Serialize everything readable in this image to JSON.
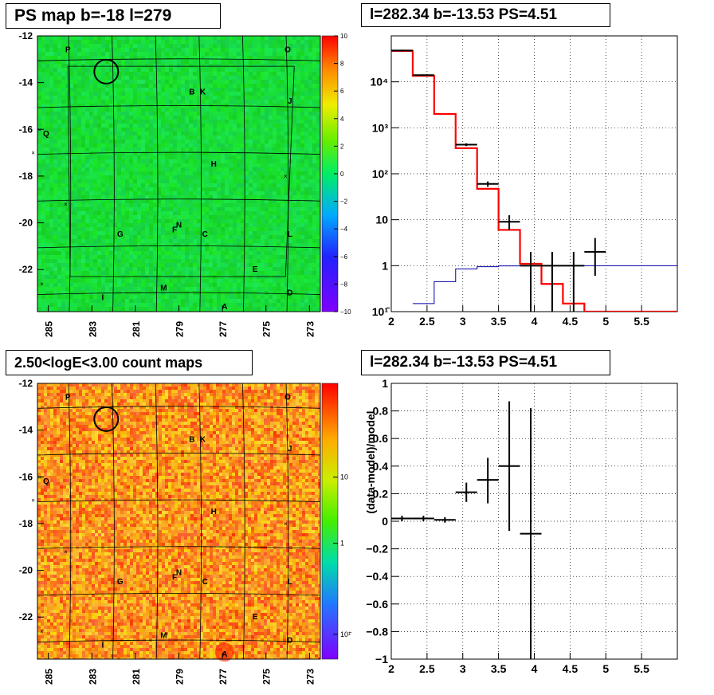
{
  "panels": {
    "ps_map_title": "PS map b=-18 l=279",
    "count_map_title": "2.50<logE<3.00 count maps",
    "spectrum_title": "l=282.34 b=-13.53 PS=4.51",
    "residual_title": "l=282.34 b=-13.53 PS=4.51"
  },
  "chart_data": [
    {
      "type": "heatmap",
      "title": "PS map b=-18 l=279",
      "x_ticks": [
        "285",
        "283",
        "281",
        "279",
        "277",
        "275",
        "273"
      ],
      "y_ticks": [
        "-12",
        "-14",
        "-16",
        "-18",
        "-20",
        "-22"
      ],
      "xlim": [
        285.5,
        272.5
      ],
      "ylim": [
        -23.8,
        -12
      ],
      "colorbar": {
        "range": [
          -10,
          10
        ],
        "ticks": [
          "10",
          "8",
          "6",
          "4",
          "2",
          "0",
          "−2",
          "−4",
          "−6",
          "−8",
          "−10"
        ]
      },
      "source_labels": [
        {
          "text": "P",
          "l": 284.1,
          "b": -12.7
        },
        {
          "text": "O",
          "l": 274.0,
          "b": -12.7
        },
        {
          "text": "B",
          "l": 278.4,
          "b": -14.5
        },
        {
          "text": "K",
          "l": 277.9,
          "b": -14.5
        },
        {
          "text": "J",
          "l": 273.9,
          "b": -14.9
        },
        {
          "text": "Q",
          "l": 285.1,
          "b": -16.3
        },
        {
          "text": "H",
          "l": 277.4,
          "b": -17.6
        },
        {
          "text": "G",
          "l": 281.7,
          "b": -20.6
        },
        {
          "text": "F",
          "l": 279.2,
          "b": -20.4
        },
        {
          "text": "N",
          "l": 279.0,
          "b": -20.2
        },
        {
          "text": "C",
          "l": 277.8,
          "b": -20.6
        },
        {
          "text": "L",
          "l": 273.9,
          "b": -20.6
        },
        {
          "text": "E",
          "l": 275.5,
          "b": -22.1
        },
        {
          "text": "M",
          "l": 279.7,
          "b": -22.9
        },
        {
          "text": "I",
          "l": 282.5,
          "b": -23.3
        },
        {
          "text": "D",
          "l": 273.9,
          "b": -23.1
        },
        {
          "text": "A",
          "l": 276.9,
          "b": -23.7
        }
      ],
      "marked_source": {
        "l": 282.34,
        "b": -13.53
      }
    },
    {
      "type": "line",
      "title": "l=282.34 b=-13.53 PS=4.51",
      "xlim": [
        2,
        6
      ],
      "ylim": [
        0.1,
        100000
      ],
      "y_scale": "log",
      "x_ticks": [
        "2",
        "2.5",
        "3",
        "3.5",
        "4",
        "4.5",
        "5",
        "5.5"
      ],
      "y_ticks": [
        "10¹̄",
        "1",
        "10",
        "10²",
        "10³",
        "10⁴"
      ],
      "grid": true,
      "series": [
        {
          "color": "#ff0000",
          "style": "step",
          "edges": [
            2.0,
            2.3,
            2.6,
            2.9,
            3.2,
            3.5,
            3.8,
            4.1,
            4.4,
            4.7,
            5.0,
            6.0
          ],
          "values": [
            47000,
            13500,
            2000,
            360,
            47,
            6,
            1.1,
            0.4,
            0.15,
            0.1,
            0.1
          ]
        },
        {
          "color": "#0000aa",
          "style": "step",
          "edges": [
            2.3,
            2.6,
            2.9,
            3.2,
            3.5,
            3.8,
            6.0
          ],
          "values": [
            0.15,
            0.45,
            0.85,
            0.95,
            0.99,
            1.0
          ]
        },
        {
          "color": "#000000",
          "style": "errorbar",
          "points": [
            {
              "x": 2.15,
              "xerr": 0.15,
              "y": 48000,
              "ylo": 46000,
              "yhi": 50000
            },
            {
              "x": 2.45,
              "xerr": 0.15,
              "y": 14000,
              "ylo": 13500,
              "yhi": 14500
            },
            {
              "x": 3.05,
              "xerr": 0.15,
              "y": 430,
              "ylo": 400,
              "yhi": 460
            },
            {
              "x": 3.35,
              "xerr": 0.15,
              "y": 60,
              "ylo": 52,
              "yhi": 68
            },
            {
              "x": 3.65,
              "xerr": 0.15,
              "y": 9,
              "ylo": 6,
              "yhi": 12.5
            },
            {
              "x": 3.95,
              "xerr": 0.15,
              "y": 1,
              "ylo": 0.1,
              "yhi": 2
            },
            {
              "x": 4.25,
              "xerr": 0.15,
              "y": 1,
              "ylo": 0.1,
              "yhi": 2
            },
            {
              "x": 4.55,
              "xerr": 0.15,
              "y": 1,
              "ylo": 0.1,
              "yhi": 2
            },
            {
              "x": 4.85,
              "xerr": 0.15,
              "y": 2,
              "ylo": 0.6,
              "yhi": 4
            }
          ]
        }
      ]
    },
    {
      "type": "heatmap",
      "title": "2.50<logE<3.00 count maps",
      "x_ticks": [
        "285",
        "283",
        "281",
        "279",
        "277",
        "275",
        "273"
      ],
      "y_ticks": [
        "-12",
        "-14",
        "-16",
        "-18",
        "-20",
        "-22"
      ],
      "xlim": [
        285.5,
        272.5
      ],
      "ylim": [
        -23.8,
        -12
      ],
      "colorbar": {
        "scale": "log",
        "ticks": [
          "10",
          "1",
          "10¹̄"
        ]
      },
      "marked_source": {
        "l": 282.34,
        "b": -13.53
      }
    },
    {
      "type": "scatter",
      "title": "l=282.34 b=-13.53 PS=4.51",
      "ylabel": "(data-model)/model",
      "xlim": [
        2,
        6
      ],
      "ylim": [
        -1,
        1
      ],
      "x_ticks": [
        "2",
        "2.5",
        "3",
        "3.5",
        "4",
        "4.5",
        "5",
        "5.5"
      ],
      "y_ticks": [
        "1",
        "0.8",
        "0.6",
        "0.4",
        "0.2",
        "0",
        "−0.2",
        "−0.4",
        "−0.6",
        "−0.8",
        "−1"
      ],
      "grid": true,
      "points": [
        {
          "x": 2.15,
          "xerr": 0.15,
          "y": 0.02,
          "ylo": 0.0,
          "yhi": 0.04
        },
        {
          "x": 2.45,
          "xerr": 0.15,
          "y": 0.02,
          "ylo": 0.0,
          "yhi": 0.04
        },
        {
          "x": 2.75,
          "xerr": 0.15,
          "y": 0.01,
          "ylo": -0.01,
          "yhi": 0.03
        },
        {
          "x": 3.05,
          "xerr": 0.15,
          "y": 0.21,
          "ylo": 0.14,
          "yhi": 0.28
        },
        {
          "x": 3.35,
          "xerr": 0.15,
          "y": 0.3,
          "ylo": 0.13,
          "yhi": 0.46
        },
        {
          "x": 3.65,
          "xerr": 0.15,
          "y": 0.4,
          "ylo": -0.07,
          "yhi": 0.87
        },
        {
          "x": 3.95,
          "xerr": 0.15,
          "y": -0.09,
          "ylo": -1.0,
          "yhi": 0.82
        }
      ]
    }
  ]
}
